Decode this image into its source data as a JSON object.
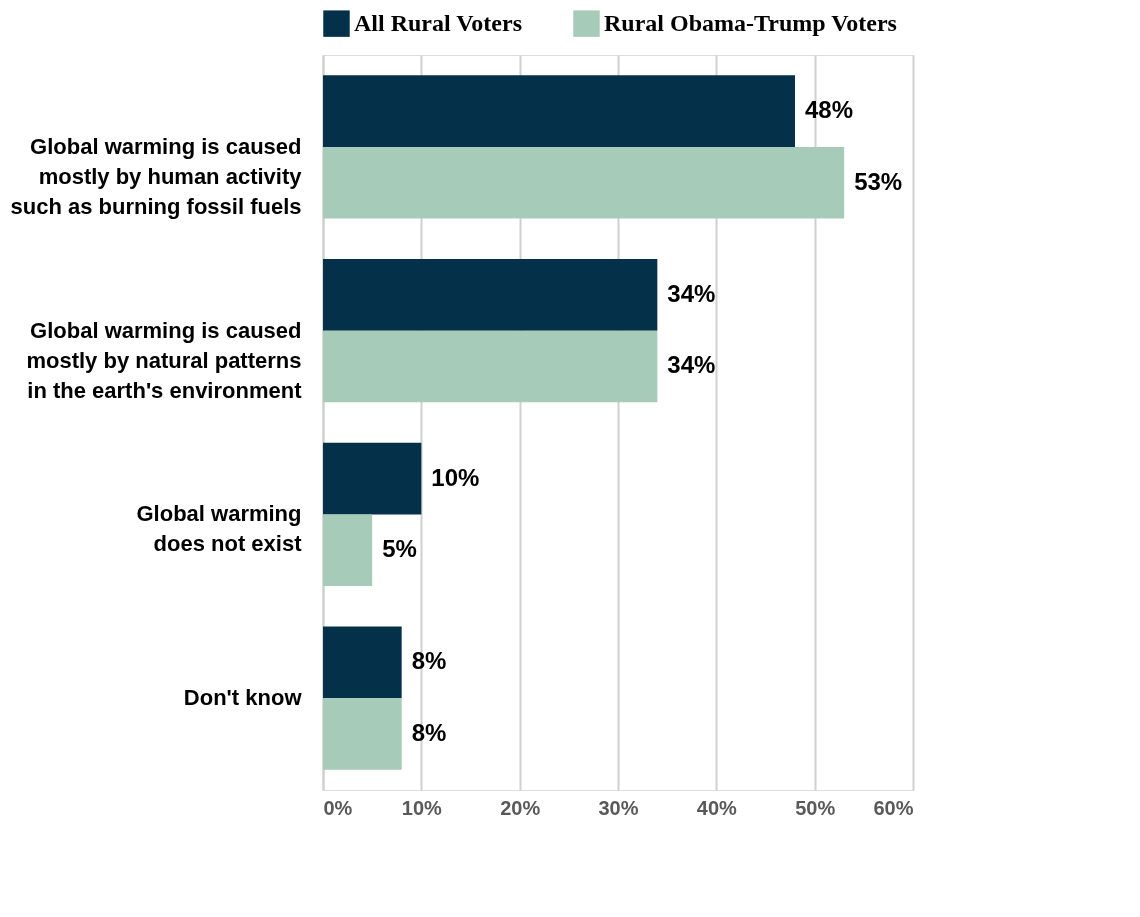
{
  "chart_data": {
    "type": "bar",
    "orientation": "horizontal",
    "categories": [
      "Global warming is caused\nmostly by human activity\nsuch as burning fossil fuels",
      "Global warming is caused\nmostly by natural patterns\nin the earth's environment",
      "Global warming\ndoes not exist",
      "Don't know"
    ],
    "series": [
      {
        "name": "All Rural Voters",
        "color": "#04304a",
        "values": [
          48,
          34,
          10,
          8
        ],
        "value_labels": [
          "48%",
          "34%",
          "10%",
          "8%"
        ]
      },
      {
        "name": "Rural Obama-Trump Voters",
        "color": "#a7cbb9",
        "values": [
          53,
          34,
          5,
          8
        ],
        "value_labels": [
          "53%",
          "34%",
          "5%",
          "8%"
        ]
      }
    ],
    "xlim": [
      0,
      60
    ],
    "xticks": [
      {
        "value": 0,
        "label": "0%"
      },
      {
        "value": 10,
        "label": "10%"
      },
      {
        "value": 20,
        "label": "20%"
      },
      {
        "value": 30,
        "label": "30%"
      },
      {
        "value": 40,
        "label": "40%"
      },
      {
        "value": 50,
        "label": "50%"
      },
      {
        "value": 60,
        "label": "60%"
      }
    ],
    "grid": "x",
    "legend": "top"
  }
}
